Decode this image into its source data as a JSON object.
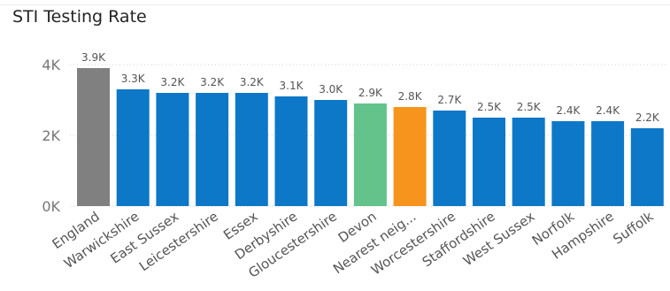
{
  "chart_data": {
    "type": "bar",
    "title": "STI Testing Rate",
    "categories": [
      "England",
      "Warwickshire",
      "East Sussex",
      "Leicestershire",
      "Essex",
      "Derbyshire",
      "Gloucestershire",
      "Devon",
      "Nearest neig...",
      "Worcestershire",
      "Staffordshire",
      "West Sussex",
      "Norfolk",
      "Hampshire",
      "Suffolk"
    ],
    "values": [
      3900,
      3300,
      3200,
      3200,
      3200,
      3100,
      3000,
      2900,
      2800,
      2700,
      2500,
      2500,
      2400,
      2400,
      2200
    ],
    "data_labels": [
      "3.9K",
      "3.3K",
      "3.2K",
      "3.2K",
      "3.2K",
      "3.1K",
      "3.0K",
      "2.9K",
      "2.8K",
      "2.7K",
      "2.5K",
      "2.5K",
      "2.4K",
      "2.4K",
      "2.2K"
    ],
    "bar_colors": [
      "#808080",
      "#0d78c7",
      "#0d78c7",
      "#0d78c7",
      "#0d78c7",
      "#0d78c7",
      "#0d78c7",
      "#63c38b",
      "#f7941d",
      "#0d78c7",
      "#0d78c7",
      "#0d78c7",
      "#0d78c7",
      "#0d78c7",
      "#0d78c7"
    ],
    "yticks": [
      0,
      2000,
      4000
    ],
    "ytick_labels": [
      "0K",
      "2K",
      "4K"
    ],
    "ylim": [
      0,
      4000
    ],
    "grid": true,
    "xlabel": "",
    "ylabel": ""
  }
}
